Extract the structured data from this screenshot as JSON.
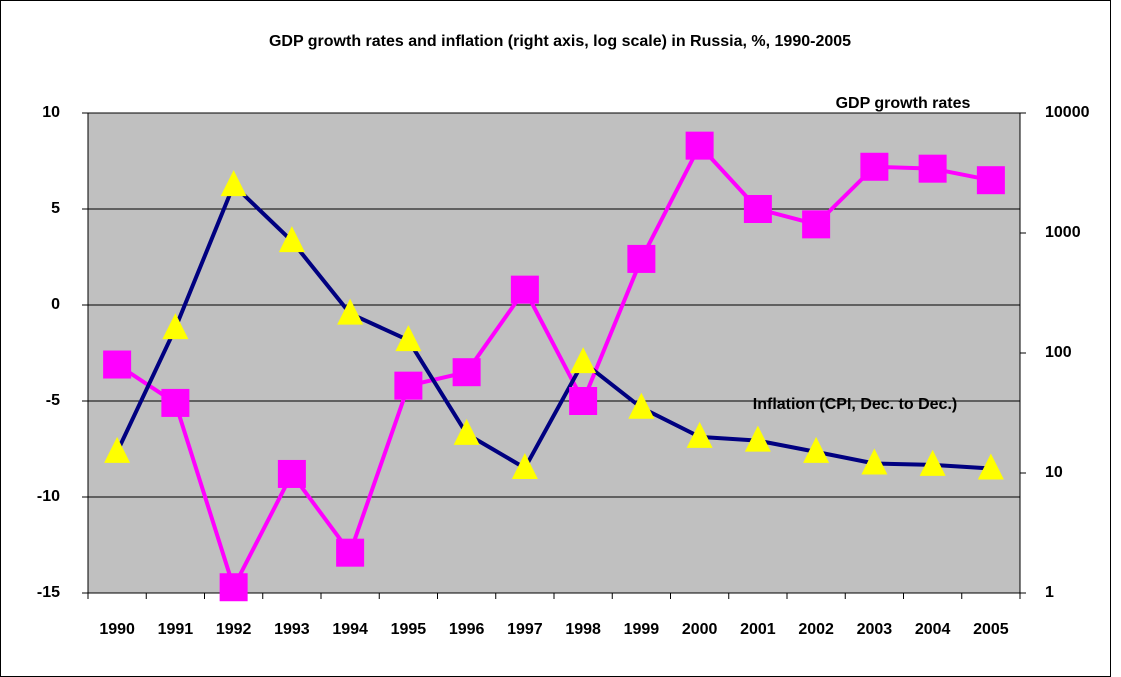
{
  "chart_data": {
    "type": "line",
    "title": "GDP growth rates and inflation (right axis, log scale) in Russia, %, 1990-2005",
    "categories": [
      "1990",
      "1991",
      "1992",
      "1993",
      "1994",
      "1995",
      "1996",
      "1997",
      "1998",
      "1999",
      "2000",
      "2001",
      "2002",
      "2003",
      "2004",
      "2005"
    ],
    "series": [
      {
        "name": "GDP growth rates",
        "color": "#ff00ff",
        "marker": "square",
        "marker_color": "#ff00ff",
        "axis": "y",
        "values": [
          -3.1,
          -5.1,
          -14.7,
          -8.8,
          -12.9,
          -4.2,
          -3.5,
          0.8,
          -5.0,
          2.4,
          8.3,
          5.0,
          4.2,
          7.2,
          7.1,
          6.5
        ]
      },
      {
        "name": "Inflation (CPI, Dec. to Dec.)",
        "color": "#000080",
        "marker": "triangle",
        "marker_color": "#ffff00",
        "axis": "y2",
        "values": [
          15,
          161,
          2508,
          856,
          213,
          128,
          21.2,
          11,
          84,
          35,
          20,
          18.6,
          15,
          12,
          11.7,
          10.9
        ]
      }
    ],
    "ylim": [
      -15,
      10
    ],
    "yticks": [
      -15,
      -10,
      -5,
      0,
      5,
      10
    ],
    "y2lim": [
      1,
      10000
    ],
    "y2ticks": [
      1,
      10,
      100,
      1000,
      10000
    ],
    "y2log": true,
    "grid": true,
    "plot_background": "#c0c0c0"
  }
}
